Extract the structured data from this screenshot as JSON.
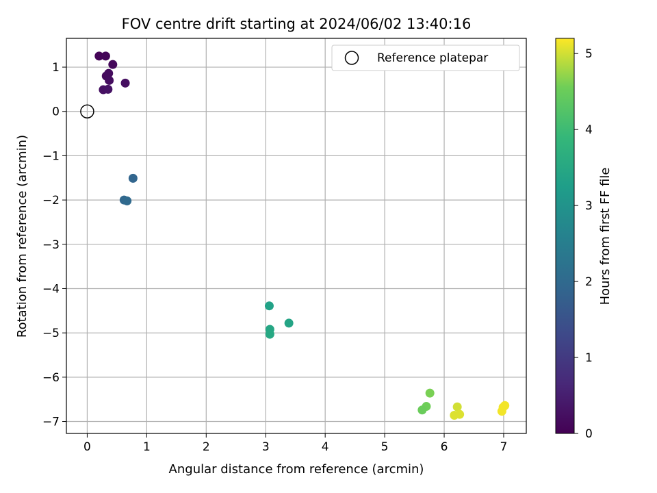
{
  "chart_data": {
    "type": "scatter",
    "title": "FOV centre drift starting at 2024/06/02 13:40:16",
    "xlabel": "Angular distance from reference (arcmin)",
    "ylabel": "Rotation from reference (arcmin)",
    "xlim": [
      -0.35,
      7.38
    ],
    "ylim": [
      -7.27,
      1.65
    ],
    "xticks": [
      0,
      1,
      2,
      3,
      4,
      5,
      6,
      7
    ],
    "yticks": [
      1,
      0,
      -1,
      -2,
      -3,
      -4,
      -5,
      -6,
      -7
    ],
    "grid": true,
    "legend": {
      "placement": "top-right",
      "entries": [
        "Reference platepar"
      ]
    },
    "reference_point": {
      "label": "Reference platepar",
      "x": 0,
      "y": 0
    },
    "colorbar": {
      "label": "Hours from first FF file",
      "colormap": "viridis",
      "range": [
        0,
        5.2
      ],
      "ticks": [
        0,
        1,
        2,
        3,
        4,
        5
      ]
    },
    "points": [
      {
        "x": 0.2,
        "y": 1.25,
        "c": 0.05
      },
      {
        "x": 0.31,
        "y": 1.25,
        "c": 0.08
      },
      {
        "x": 0.43,
        "y": 1.06,
        "c": 0.12
      },
      {
        "x": 0.32,
        "y": 0.8,
        "c": 0.15
      },
      {
        "x": 0.36,
        "y": 0.86,
        "c": 0.18
      },
      {
        "x": 0.37,
        "y": 0.7,
        "c": 0.2
      },
      {
        "x": 0.64,
        "y": 0.64,
        "c": 0.22
      },
      {
        "x": 0.27,
        "y": 0.49,
        "c": 0.25
      },
      {
        "x": 0.35,
        "y": 0.5,
        "c": 0.28
      },
      {
        "x": 0.77,
        "y": -1.51,
        "c": 1.9
      },
      {
        "x": 0.62,
        "y": -2.0,
        "c": 1.95
      },
      {
        "x": 0.67,
        "y": -2.02,
        "c": 2.0
      },
      {
        "x": 3.06,
        "y": -4.39,
        "c": 3.35
      },
      {
        "x": 3.39,
        "y": -4.78,
        "c": 3.4
      },
      {
        "x": 3.07,
        "y": -4.92,
        "c": 3.45
      },
      {
        "x": 3.07,
        "y": -5.03,
        "c": 3.5
      },
      {
        "x": 5.76,
        "y": -6.36,
        "c": 4.6
      },
      {
        "x": 5.7,
        "y": -6.66,
        "c": 4.55
      },
      {
        "x": 5.63,
        "y": -6.74,
        "c": 4.5
      },
      {
        "x": 6.22,
        "y": -6.67,
        "c": 5.0
      },
      {
        "x": 6.17,
        "y": -6.86,
        "c": 5.05
      },
      {
        "x": 6.26,
        "y": -6.84,
        "c": 5.05
      },
      {
        "x": 7.02,
        "y": -6.64,
        "c": 5.15
      },
      {
        "x": 6.99,
        "y": -6.68,
        "c": 5.15
      },
      {
        "x": 6.97,
        "y": -6.77,
        "c": 5.15
      }
    ]
  }
}
